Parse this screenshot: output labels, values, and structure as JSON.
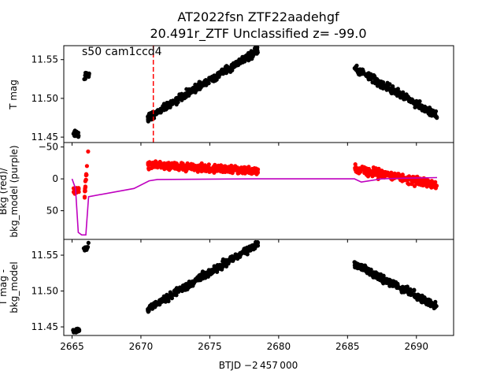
{
  "chart_data": {
    "type": "scatter",
    "title": "AT2022fsn  ZTF22aadehgf",
    "subtitle": "20.491r_ZTF Unclassified z= -99.0",
    "annotation": "s50 cam1ccd4",
    "xlabel": "BTJD −2 457 000",
    "xlim": [
      2664.4,
      2692.7
    ],
    "xticks": [
      "2665",
      "2670",
      "2675",
      "2680",
      "2685",
      "2690"
    ],
    "marker_line_x": 2670.9,
    "panels": [
      {
        "ylabel": [
          "T mag"
        ],
        "ylim": [
          11.568,
          11.443
        ],
        "yticks": [
          "11.45",
          "11.50",
          "11.55"
        ],
        "series": [
          {
            "color": "#000000",
            "segments": [
              {
                "x_start": 2665.05,
                "x_end": 2665.55,
                "y_start": 11.455,
                "y_end": 11.453,
                "scatter": 0.003,
                "n": 30
              },
              {
                "x_start": 2665.85,
                "x_end": 2666.25,
                "y_start": 11.528,
                "y_end": 11.532,
                "scatter": 0.004,
                "n": 14
              },
              {
                "x_start": 2670.5,
                "x_end": 2678.5,
                "y_start": 11.475,
                "y_end": 11.562,
                "scatter": 0.004,
                "n": 380
              },
              {
                "x_start": 2685.5,
                "x_end": 2691.5,
                "y_start": 11.538,
                "y_end": 11.478,
                "scatter": 0.004,
                "n": 300
              }
            ]
          }
        ]
      },
      {
        "ylabel": [
          "Bkg (red)/",
          "bkg_model (purple)"
        ],
        "ylim": [
          -57,
          95
        ],
        "yticks": [
          "50",
          "0",
          "−50"
        ],
        "series": [
          {
            "color": "#ff0000",
            "segments": [
              {
                "x_start": 2665.1,
                "x_end": 2665.5,
                "y_start": 18,
                "y_end": 18,
                "scatter": 4,
                "n": 25
              },
              {
                "x_start": 2665.9,
                "x_end": 2666.2,
                "y_start": 28,
                "y_end": -48,
                "scatter": 6,
                "n": 16
              },
              {
                "x_start": 2670.5,
                "x_end": 2678.5,
                "y_start": -22,
                "y_end": -12,
                "scatter": 5,
                "n": 380
              },
              {
                "x_start": 2685.5,
                "x_end": 2691.5,
                "y_start": -16,
                "y_end": 10,
                "scatter": 5,
                "n": 300
              }
            ]
          }
        ],
        "model_line": {
          "color": "#bf00bf",
          "points": [
            [
              2665.0,
              0
            ],
            [
              2665.25,
              15
            ],
            [
              2665.45,
              84
            ],
            [
              2665.7,
              88
            ],
            [
              2666.0,
              88
            ],
            [
              2666.2,
              28
            ],
            [
              2669.5,
              15
            ],
            [
              2670.6,
              3
            ],
            [
              2671.2,
              1
            ],
            [
              2678.5,
              0
            ],
            [
              2685.5,
              0
            ],
            [
              2686.0,
              5
            ],
            [
              2687.5,
              0
            ],
            [
              2689.0,
              -1
            ],
            [
              2691.5,
              -2
            ]
          ]
        }
      },
      {
        "ylabel": [
          "T mag -",
          "bkg_model"
        ],
        "ylim": [
          11.572,
          11.438
        ],
        "yticks": [
          "11.45",
          "11.50",
          "11.55"
        ],
        "series": [
          {
            "color": "#000000",
            "segments": [
              {
                "x_start": 2665.05,
                "x_end": 2665.55,
                "y_start": 11.443,
                "y_end": 11.446,
                "scatter": 0.003,
                "n": 30
              },
              {
                "x_start": 2665.85,
                "x_end": 2666.25,
                "y_start": 11.557,
                "y_end": 11.562,
                "scatter": 0.004,
                "n": 14
              },
              {
                "x_start": 2670.5,
                "x_end": 2678.5,
                "y_start": 11.475,
                "y_end": 11.566,
                "scatter": 0.004,
                "n": 380
              },
              {
                "x_start": 2685.5,
                "x_end": 2691.5,
                "y_start": 11.538,
                "y_end": 11.478,
                "scatter": 0.004,
                "n": 300
              }
            ]
          }
        ]
      }
    ]
  }
}
